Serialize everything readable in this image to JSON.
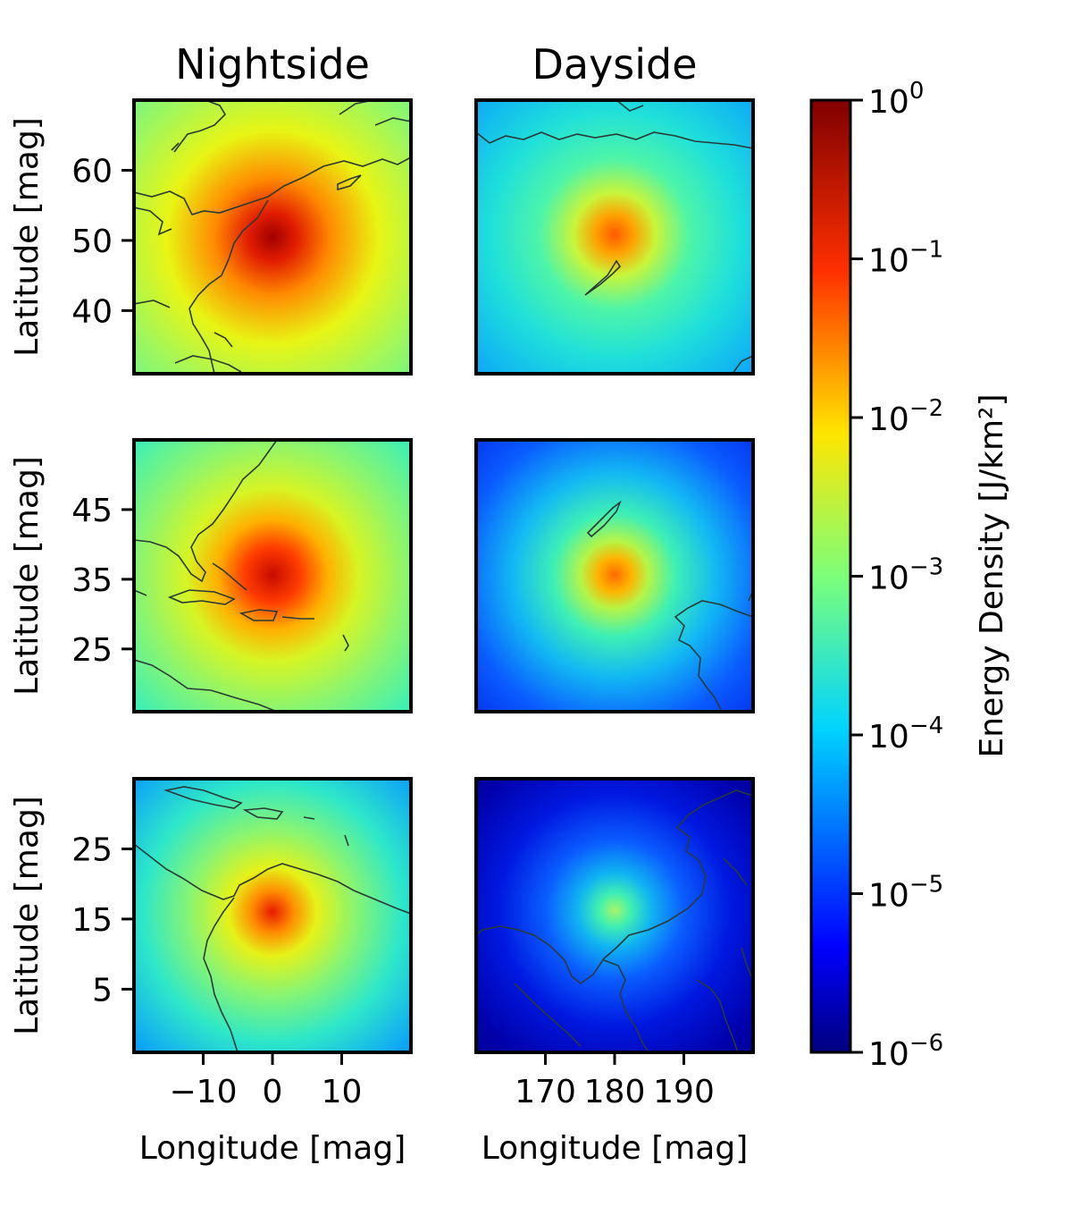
{
  "chart_data": [
    {
      "type": "heatmap",
      "title": "Nightside",
      "ylabel": "Latitude [mag]",
      "xlabel": "",
      "ylim": [
        31,
        70
      ],
      "xlim": [
        -20,
        20
      ],
      "yticks": [
        60,
        50,
        40
      ],
      "xticks": [],
      "peak": {
        "x": 0,
        "y": 50,
        "value": 1.0
      },
      "coastline": "north-america-east"
    },
    {
      "type": "heatmap",
      "title": "Dayside",
      "ylabel": "",
      "xlabel": "",
      "ylim": [
        31,
        70
      ],
      "xlim": [
        160,
        200
      ],
      "yticks": [],
      "xticks": [],
      "peak": {
        "x": 180,
        "y": 50,
        "value": 0.05
      },
      "coastline": "east-asia-north"
    },
    {
      "type": "heatmap",
      "title": "",
      "ylabel": "Latitude [mag]",
      "xlabel": "",
      "ylim": [
        16,
        55
      ],
      "xlim": [
        -20,
        20
      ],
      "yticks": [
        45,
        35,
        25
      ],
      "xticks": [],
      "peak": {
        "x": 0,
        "y": 35,
        "value": 0.6
      },
      "coastline": "north-america-southeast"
    },
    {
      "type": "heatmap",
      "title": "",
      "ylabel": "",
      "xlabel": "",
      "ylim": [
        16,
        55
      ],
      "xlim": [
        160,
        200
      ],
      "yticks": [],
      "xticks": [],
      "peak": {
        "x": 180,
        "y": 35,
        "value": 0.03
      },
      "coastline": "east-asia"
    },
    {
      "type": "heatmap",
      "title": "",
      "ylabel": "Latitude [mag]",
      "xlabel": "Longitude [mag]",
      "ylim": [
        -4,
        35
      ],
      "xlim": [
        -20,
        20
      ],
      "yticks": [
        25,
        15,
        5
      ],
      "xticks": [
        {
          "v": -10,
          "label": "−10"
        },
        {
          "v": 0,
          "label": "0"
        },
        {
          "v": 10,
          "label": "10"
        }
      ],
      "peak": {
        "x": 0,
        "y": 15,
        "value": 0.4
      },
      "coastline": "central-america"
    },
    {
      "type": "heatmap",
      "title": "",
      "ylabel": "",
      "xlabel": "Longitude [mag]",
      "ylim": [
        -4,
        35
      ],
      "xlim": [
        160,
        200
      ],
      "yticks": [],
      "xticks": [
        {
          "v": 170,
          "label": "170"
        },
        {
          "v": 180,
          "label": "180"
        },
        {
          "v": 190,
          "label": "190"
        }
      ],
      "peak": {
        "x": 180,
        "y": 15,
        "value": 0.0004
      },
      "coastline": "southeast-asia"
    }
  ],
  "colorbar": {
    "label": "Energy Density [J/km²]",
    "scale": "log",
    "range": [
      1e-06,
      1
    ],
    "colormap": "jet",
    "ticks": [
      {
        "exp": 0,
        "base": "10",
        "sup": "0"
      },
      {
        "exp": -1,
        "base": "10",
        "sup": "−1"
      },
      {
        "exp": -2,
        "base": "10",
        "sup": "−2"
      },
      {
        "exp": -3,
        "base": "10",
        "sup": "−3"
      },
      {
        "exp": -4,
        "base": "10",
        "sup": "−4"
      },
      {
        "exp": -5,
        "base": "10",
        "sup": "−5"
      },
      {
        "exp": -6,
        "base": "10",
        "sup": "−6"
      }
    ]
  }
}
